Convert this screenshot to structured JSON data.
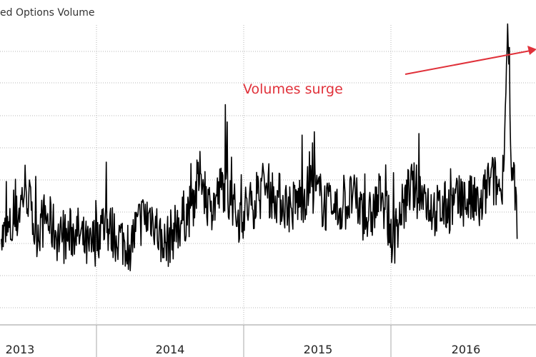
{
  "chart_data": {
    "type": "line",
    "title": "ed Options Volume",
    "xlabel": "",
    "ylabel": "",
    "x_tick_labels": [
      "2013",
      "2014",
      "2015",
      "2016"
    ],
    "x_range": [
      2012.99,
      2016.96
    ],
    "y_range": [
      0,
      10
    ],
    "grid": true,
    "series": [
      {
        "x": [
          2013.0,
          2013.1,
          2013.18,
          2013.25,
          2013.33,
          2013.45,
          2013.55,
          2013.65,
          2013.75,
          2013.85,
          2013.95,
          2014.03,
          2014.12,
          2014.2,
          2014.3,
          2014.4,
          2014.48,
          2014.55,
          2014.65,
          2014.75,
          2014.85,
          2014.95,
          2015.03,
          2015.15,
          2015.3,
          2015.45,
          2015.6,
          2015.72,
          2015.82,
          2015.9,
          2015.96,
          2016.03,
          2016.12,
          2016.22,
          2016.35,
          2016.45,
          2016.55,
          2016.62,
          2016.7,
          2016.72,
          2016.75,
          2016.78,
          2016.8,
          2016.82
        ],
        "values": [
          2.8,
          3.2,
          4.6,
          3.0,
          3.5,
          2.7,
          3.1,
          2.4,
          3.3,
          2.9,
          2.6,
          3.4,
          3.6,
          2.5,
          3.2,
          3.8,
          4.9,
          3.7,
          4.6,
          3.5,
          3.9,
          4.5,
          4.2,
          3.8,
          4.5,
          3.6,
          4.1,
          3.4,
          4.3,
          2.7,
          3.6,
          4.5,
          4.2,
          3.7,
          3.9,
          4.1,
          3.8,
          4.8,
          4.4,
          5.0,
          9.8,
          4.7,
          5.2,
          2.8
        ],
        "color": "#000000"
      }
    ],
    "annotations": [
      {
        "text": "Volumes surge",
        "color": "#e0313a"
      }
    ]
  }
}
